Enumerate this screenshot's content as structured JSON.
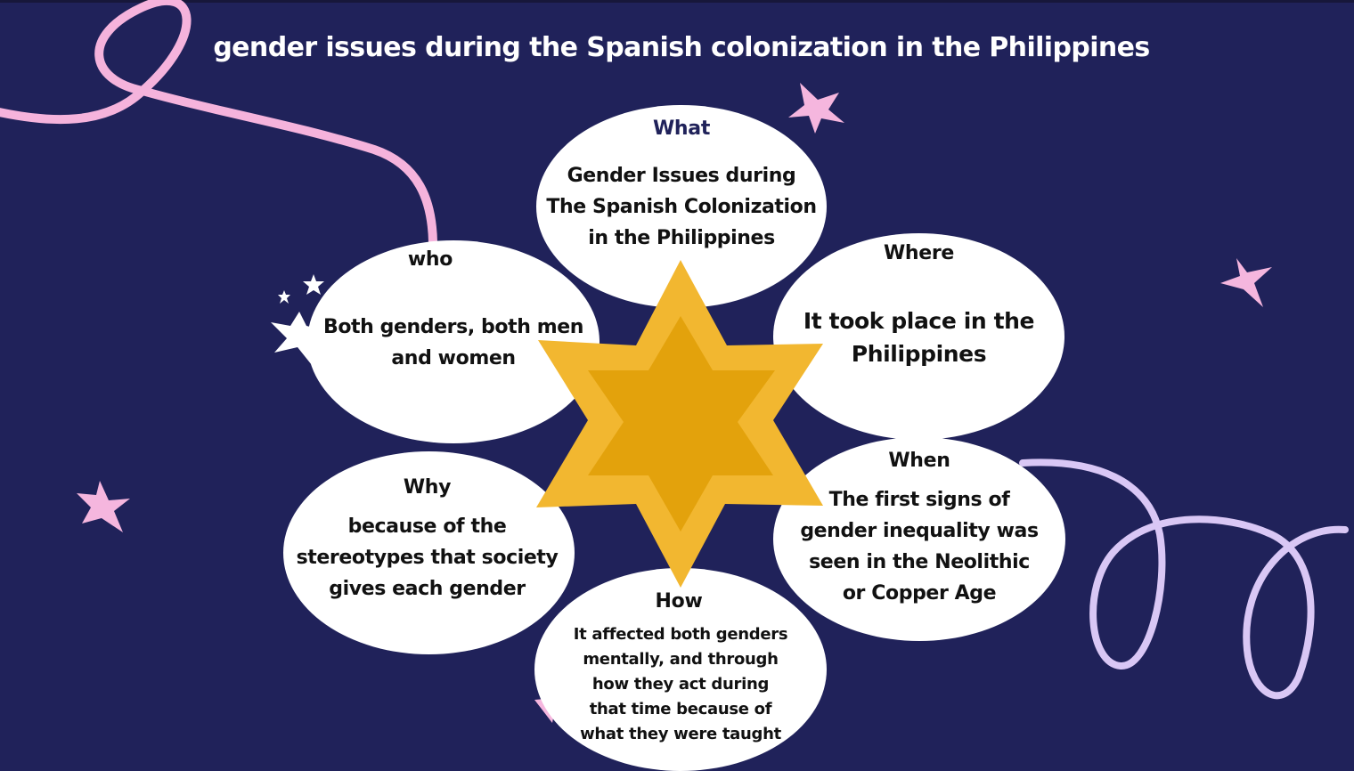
{
  "title": "gender issues during the Spanish colonization in the Philippines",
  "colors": {
    "background": "#20225a",
    "ellipse": "#ffffff",
    "star_outer": "#f2b730",
    "star_inner": "#e3a20c",
    "pink_ribbon": "#f5b3dc",
    "lavender_ribbon": "#d9c7f5",
    "pink_star": "#f5b6de",
    "white_star": "#ffffff"
  },
  "center_icon": "six-pointed-star",
  "nodes": {
    "what": {
      "heading": "What",
      "lines": [
        "Gender Issues during",
        "The Spanish Colonization",
        "in the Philippines"
      ]
    },
    "who": {
      "heading": "who",
      "lines": [
        "Both genders, both men",
        "and women"
      ]
    },
    "where": {
      "heading": "Where",
      "lines": [
        "It took place in the",
        "Philippines"
      ]
    },
    "why": {
      "heading": "Why",
      "lines": [
        "because of the",
        "stereotypes that society",
        "gives each gender"
      ]
    },
    "when": {
      "heading": "When",
      "lines": [
        "The first signs of",
        "gender inequality was",
        "seen in the Neolithic",
        "or Copper Age"
      ]
    },
    "how": {
      "heading": "How",
      "lines": [
        "It affected both genders",
        "mentally, and through",
        "how they act during",
        "that time because of",
        "what they were taught"
      ]
    }
  }
}
